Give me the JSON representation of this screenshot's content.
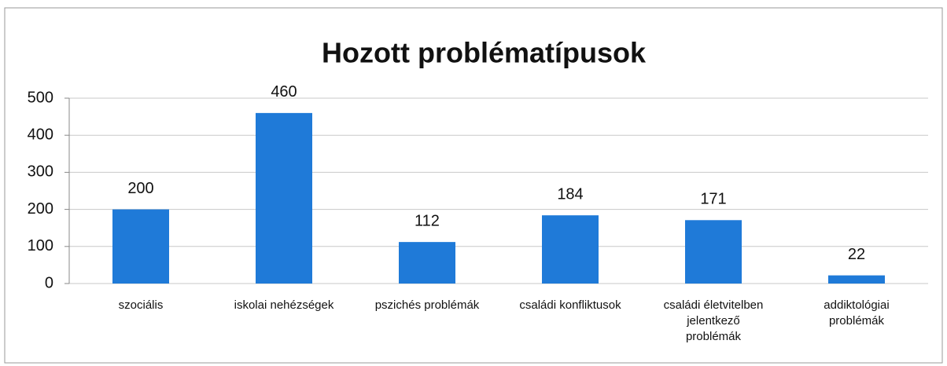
{
  "chart_data": {
    "type": "bar",
    "title": "Hozott problématípusok",
    "categories": [
      "szociális",
      "iskolai nehézségek",
      "pszichés problémák",
      "családi konfliktusok",
      "családi életvitelben jelentkező problémák",
      "addiktológiai problémák"
    ],
    "values": [
      200,
      460,
      112,
      184,
      171,
      22
    ],
    "color": "#1f7ad8",
    "ylim": [
      0,
      500
    ],
    "yticks": [
      0,
      100,
      200,
      300,
      400,
      500
    ],
    "grid": true
  }
}
